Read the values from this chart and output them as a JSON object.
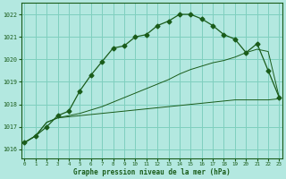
{
  "title": "Graphe pression niveau de la mer (hPa)",
  "background_color": "#b3e8e0",
  "grid_color": "#7fcfbe",
  "line_color": "#1a5c1a",
  "x_ticks": [
    0,
    1,
    2,
    3,
    4,
    5,
    6,
    7,
    8,
    9,
    10,
    11,
    12,
    13,
    14,
    15,
    16,
    17,
    18,
    19,
    20,
    21,
    22,
    23
  ],
  "y_ticks": [
    1016,
    1017,
    1018,
    1019,
    1020,
    1021,
    1022
  ],
  "ylim": [
    1015.6,
    1022.5
  ],
  "xlim": [
    -0.3,
    23.3
  ],
  "main_x": [
    0,
    1,
    2,
    3,
    4,
    5,
    6,
    7,
    8,
    9,
    10,
    11,
    12,
    13,
    14,
    15,
    16,
    17,
    18,
    19,
    20,
    21,
    22,
    23
  ],
  "main_y": [
    1016.3,
    1016.6,
    1017.0,
    1017.5,
    1017.7,
    1018.6,
    1019.3,
    1019.9,
    1020.5,
    1020.6,
    1021.0,
    1021.1,
    1021.5,
    1021.7,
    1022.0,
    1022.0,
    1021.8,
    1021.5,
    1021.1,
    1020.9,
    1020.3,
    1020.7,
    1019.5,
    1018.3
  ],
  "line_flat_x": [
    0,
    1,
    2,
    3,
    4,
    5,
    6,
    7,
    8,
    9,
    10,
    11,
    12,
    13,
    14,
    15,
    16,
    17,
    18,
    19,
    20,
    21,
    22,
    23
  ],
  "line_flat_y": [
    1016.3,
    1016.6,
    1017.2,
    1017.4,
    1017.45,
    1017.5,
    1017.55,
    1017.6,
    1017.65,
    1017.7,
    1017.75,
    1017.8,
    1017.85,
    1017.9,
    1017.95,
    1018.0,
    1018.05,
    1018.1,
    1018.15,
    1018.2,
    1018.2,
    1018.2,
    1018.2,
    1018.25
  ],
  "line_diag_x": [
    0,
    1,
    2,
    3,
    4,
    5,
    6,
    7,
    8,
    9,
    10,
    11,
    12,
    13,
    14,
    15,
    16,
    17,
    18,
    19,
    20,
    21,
    22,
    23
  ],
  "line_diag_y": [
    1016.3,
    1016.6,
    1017.2,
    1017.4,
    1017.5,
    1017.6,
    1017.75,
    1017.9,
    1018.1,
    1018.3,
    1018.5,
    1018.7,
    1018.9,
    1019.1,
    1019.35,
    1019.55,
    1019.7,
    1019.85,
    1019.95,
    1020.1,
    1020.3,
    1020.45,
    1020.35,
    1018.3
  ]
}
